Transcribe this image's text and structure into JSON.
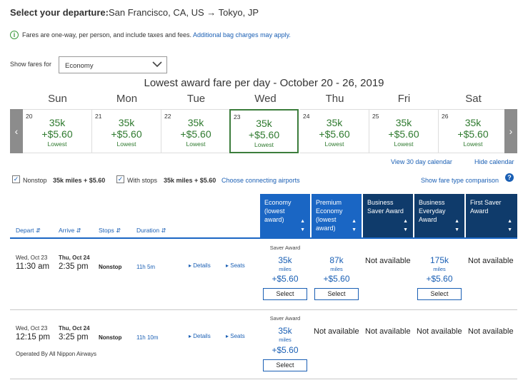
{
  "header": {
    "label": "Select your departure:",
    "route": "San Francisco, CA, US → Tokyo, JP"
  },
  "notice": {
    "icon": "info-icon",
    "text": "Fares are one-way, per person, and include taxes and fees.",
    "link": "Additional bag charges may apply."
  },
  "filter": {
    "label": "Show fares for",
    "value": "Economy"
  },
  "calendar": {
    "title": "Lowest award fare per day - October 20 - 26, 2019",
    "days": [
      {
        "name": "Sun",
        "num": "20",
        "miles": "35k",
        "fee": "+$5.60",
        "tag": "Lowest",
        "selected": false
      },
      {
        "name": "Mon",
        "num": "21",
        "miles": "35k",
        "fee": "+$5.60",
        "tag": "Lowest",
        "selected": false
      },
      {
        "name": "Tue",
        "num": "22",
        "miles": "35k",
        "fee": "+$5.60",
        "tag": "Lowest",
        "selected": false
      },
      {
        "name": "Wed",
        "num": "23",
        "miles": "35k",
        "fee": "+$5.60",
        "tag": "Lowest",
        "selected": true
      },
      {
        "name": "Thu",
        "num": "24",
        "miles": "35k",
        "fee": "+$5.60",
        "tag": "Lowest",
        "selected": false
      },
      {
        "name": "Fri",
        "num": "25",
        "miles": "35k",
        "fee": "+$5.60",
        "tag": "Lowest",
        "selected": false
      },
      {
        "name": "Sat",
        "num": "26",
        "miles": "35k",
        "fee": "+$5.60",
        "tag": "Lowest",
        "selected": false
      }
    ],
    "view30": "View 30 day calendar",
    "hide": "Hide calendar"
  },
  "stops_filter": {
    "nonstop_label": "Nonstop",
    "nonstop_price": "35k miles + $5.60",
    "withstops_label": "With stops",
    "withstops_price": "35k miles + $5.60",
    "connecting_link": "Choose connecting airports",
    "fare_compare_link": "Show fare type comparison"
  },
  "table": {
    "sort_headers": [
      "Depart",
      "Arrive",
      "Stops",
      "Duration"
    ],
    "columns": [
      {
        "label": "Economy (lowest award)",
        "style": "eco"
      },
      {
        "label": "Premium Economy (lowest award)",
        "style": "eco"
      },
      {
        "label": "Business Saver Award",
        "style": "dark"
      },
      {
        "label": "Business Everyday Award",
        "style": "dark"
      },
      {
        "label": "First Saver Award",
        "style": "dark"
      }
    ],
    "rows": [
      {
        "depart_date": "Wed, Oct 23",
        "depart_time": "11:30 am",
        "arrive_date": "Thu, Oct 24",
        "arrive_time": "2:35 pm",
        "stops": "Nonstop",
        "duration": "11h 5m",
        "details": "Details",
        "seats": "Seats",
        "operated_by": "",
        "award_type": "Saver Award",
        "fares": [
          {
            "miles": "35k",
            "unit": "miles",
            "fee": "+$5.60",
            "button": "Select"
          },
          {
            "miles": "87k",
            "unit": "miles",
            "fee": "+$5.60",
            "button": "Select"
          },
          {
            "na": "Not available"
          },
          {
            "miles": "175k",
            "unit": "miles",
            "fee": "+$5.60",
            "button": "Select"
          },
          {
            "na": "Not available"
          }
        ]
      },
      {
        "depart_date": "Wed, Oct 23",
        "depart_time": "12:15 pm",
        "arrive_date": "Thu, Oct 24",
        "arrive_time": "3:25 pm",
        "stops": "Nonstop",
        "duration": "11h 10m",
        "details": "Details",
        "seats": "Seats",
        "operated_by": "Operated By All Nippon Airways",
        "award_type": "Saver Award",
        "fares": [
          {
            "miles": "35k",
            "unit": "miles",
            "fee": "+$5.60",
            "button": "Select"
          },
          {
            "na": "Not available"
          },
          {
            "na": "Not available"
          },
          {
            "na": "Not available"
          },
          {
            "na": "Not available"
          }
        ]
      }
    ]
  },
  "colors": {
    "link": "#1a5fb4",
    "green": "#2f7a2f",
    "economy_header": "#1a66c4",
    "business_header": "#0f3b6b"
  }
}
